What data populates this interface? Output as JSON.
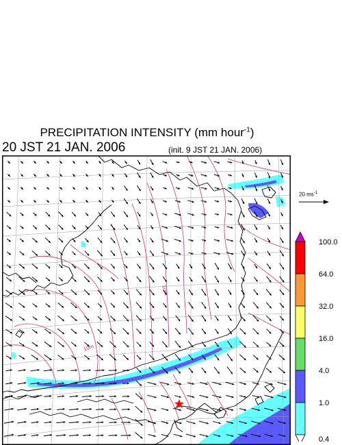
{
  "header": {
    "title_main": "PRECIPITATION INTENSITY (mm hour",
    "title_exp": "-1",
    "title_close": ")",
    "valid_time": "20 JST 21 JAN. 2006",
    "init_time": "(init. 9 JST 21 JAN. 2006)"
  },
  "reference_vector": {
    "label": "20 ms",
    "label_exp": "-1"
  },
  "legend": {
    "levels": [
      "100.0",
      "64.0",
      "32.0",
      "16.0",
      "4.0",
      "1.0",
      "0.4"
    ],
    "colors": [
      "#cc00cc",
      "#ff0000",
      "#ff9933",
      "#ffff66",
      "#66dd66",
      "#5a5aff",
      "#66ffff"
    ]
  },
  "contour_labels": [
    "10m",
    "10m"
  ],
  "colors": {
    "frame": "#000000",
    "coast": "#000000",
    "grid": "#999999",
    "contour": "#cc3377",
    "arrow": "#000000",
    "marker": "#ff0000"
  }
}
